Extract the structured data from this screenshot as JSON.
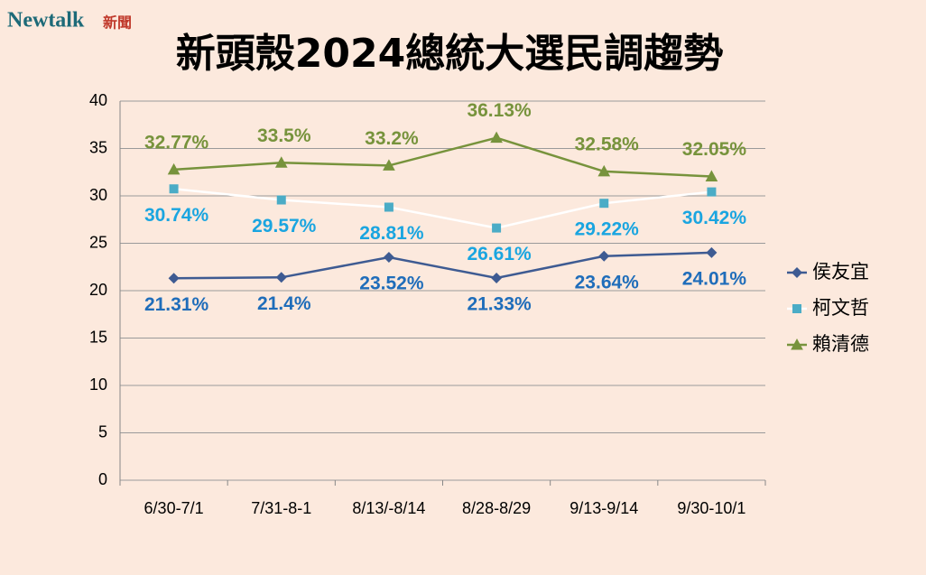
{
  "logo": {
    "text": "Newtalk",
    "sub": "新聞"
  },
  "chart_data": {
    "type": "line",
    "title": "新頭殼2024總統大選民調趨勢",
    "categories": [
      "6/30-7/1",
      "7/31-8-1",
      "8/13/-8/14",
      "8/28-8/29",
      "9/13-9/14",
      "9/30-10/1"
    ],
    "series": [
      {
        "name": "侯友宜",
        "color": "#3e5b92",
        "marker": "diamond",
        "label_color": "#1f6dba",
        "label_position": "below",
        "values": [
          21.31,
          21.4,
          23.52,
          21.33,
          23.64,
          24.01
        ],
        "value_labels": [
          "21.31%",
          "21.4%",
          "23.52%",
          "21.33%",
          "23.64%",
          "24.01%"
        ]
      },
      {
        "name": "柯文哲",
        "color": "#ffffff",
        "marker_color": "#4bacc6",
        "marker": "square",
        "label_color": "#1aa5e0",
        "label_position": "below",
        "values": [
          30.74,
          29.57,
          28.81,
          26.61,
          29.22,
          30.42
        ],
        "value_labels": [
          "30.74%",
          "29.57%",
          "28.81%",
          "26.61%",
          "29.22%",
          "30.42%"
        ]
      },
      {
        "name": "賴清德",
        "color": "#77933c",
        "marker": "triangle",
        "label_color": "#77933c",
        "label_position": "above",
        "values": [
          32.77,
          33.5,
          33.2,
          36.13,
          32.58,
          32.05
        ],
        "value_labels": [
          "32.77%",
          "33.5%",
          "33.2%",
          "36.13%",
          "32.58%",
          "32.05%"
        ]
      }
    ],
    "ylim": [
      0,
      40
    ],
    "yticks": [
      0,
      5,
      10,
      15,
      20,
      25,
      30,
      35,
      40
    ],
    "grid": true,
    "legend": "right"
  }
}
